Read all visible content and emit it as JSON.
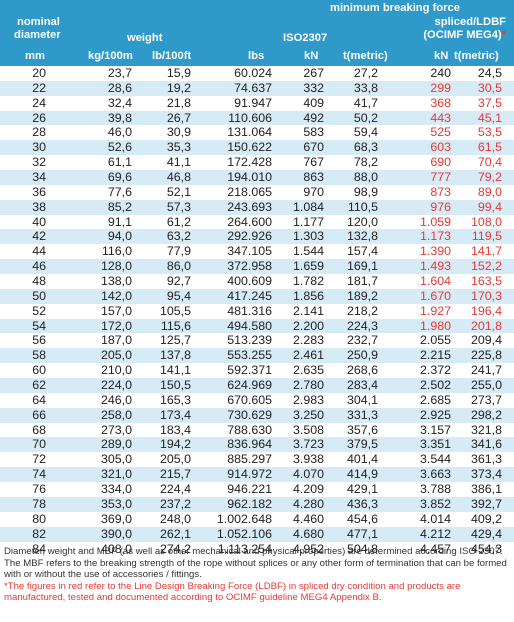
{
  "header": {
    "mbf_title": "minimum breaking force",
    "spliced_title": "spliced/LDBF",
    "ocimf_title": "(OCIMF MEG4)",
    "ocimf_star": "*",
    "nominal": "nominal",
    "diameter": "diameter",
    "weight": "weight",
    "iso": "ISO2307",
    "col_mm": "mm",
    "col_kg": "kg/100m",
    "col_lb": "lb/100ft",
    "col_lbs": "lbs",
    "col_kn": "kN",
    "col_tm": "t(metric)",
    "col_kn2": "kN",
    "col_tm2": "t(metric)"
  },
  "colors": {
    "header_bg": "#2f9ac9",
    "stripe": "#d6ebf6",
    "red": "#e53935"
  },
  "rows": [
    {
      "mm": "20",
      "kg": "23,7",
      "lb": "15,9",
      "lbs": "60.024",
      "kn": "267",
      "t": "27,2",
      "kn2": "240",
      "t2": "24,5",
      "red": false
    },
    {
      "mm": "22",
      "kg": "28,6",
      "lb": "19,2",
      "lbs": "74.637",
      "kn": "332",
      "t": "33,8",
      "kn2": "299",
      "t2": "30,5",
      "red": true
    },
    {
      "mm": "24",
      "kg": "32,4",
      "lb": "21,8",
      "lbs": "91.947",
      "kn": "409",
      "t": "41,7",
      "kn2": "368",
      "t2": "37,5",
      "red": true
    },
    {
      "mm": "26",
      "kg": "39,8",
      "lb": "26,7",
      "lbs": "110.606",
      "kn": "492",
      "t": "50,2",
      "kn2": "443",
      "t2": "45,1",
      "red": true
    },
    {
      "mm": "28",
      "kg": "46,0",
      "lb": "30,9",
      "lbs": "131.064",
      "kn": "583",
      "t": "59,4",
      "kn2": "525",
      "t2": "53,5",
      "red": true
    },
    {
      "mm": "30",
      "kg": "52,6",
      "lb": "35,3",
      "lbs": "150.622",
      "kn": "670",
      "t": "68,3",
      "kn2": "603",
      "t2": "61,5",
      "red": true
    },
    {
      "mm": "32",
      "kg": "61,1",
      "lb": "41,1",
      "lbs": "172.428",
      "kn": "767",
      "t": "78,2",
      "kn2": "690",
      "t2": "70,4",
      "red": true
    },
    {
      "mm": "34",
      "kg": "69,6",
      "lb": "46,8",
      "lbs": "194.010",
      "kn": "863",
      "t": "88,0",
      "kn2": "777",
      "t2": "79,2",
      "red": true
    },
    {
      "mm": "36",
      "kg": "77,6",
      "lb": "52,1",
      "lbs": "218.065",
      "kn": "970",
      "t": "98,9",
      "kn2": "873",
      "t2": "89,0",
      "red": true
    },
    {
      "mm": "38",
      "kg": "85,2",
      "lb": "57,3",
      "lbs": "243.693",
      "kn": "1.084",
      "t": "110,5",
      "kn2": "976",
      "t2": "99,4",
      "red": true
    },
    {
      "mm": "40",
      "kg": "91,1",
      "lb": "61,2",
      "lbs": "264.600",
      "kn": "1.177",
      "t": "120,0",
      "kn2": "1.059",
      "t2": "108,0",
      "red": true
    },
    {
      "mm": "42",
      "kg": "94,0",
      "lb": "63,2",
      "lbs": "292.926",
      "kn": "1.303",
      "t": "132,8",
      "kn2": "1.173",
      "t2": "119,5",
      "red": true
    },
    {
      "mm": "44",
      "kg": "116,0",
      "lb": "77,9",
      "lbs": "347.105",
      "kn": "1.544",
      "t": "157,4",
      "kn2": "1.390",
      "t2": "141,7",
      "red": true
    },
    {
      "mm": "46",
      "kg": "128,0",
      "lb": "86,0",
      "lbs": "372.958",
      "kn": "1.659",
      "t": "169,1",
      "kn2": "1.493",
      "t2": "152,2",
      "red": true
    },
    {
      "mm": "48",
      "kg": "138,0",
      "lb": "92,7",
      "lbs": "400.609",
      "kn": "1.782",
      "t": "181,7",
      "kn2": "1.604",
      "t2": "163,5",
      "red": true
    },
    {
      "mm": "50",
      "kg": "142,0",
      "lb": "95,4",
      "lbs": "417.245",
      "kn": "1.856",
      "t": "189,2",
      "kn2": "1.670",
      "t2": "170,3",
      "red": true
    },
    {
      "mm": "52",
      "kg": "157,0",
      "lb": "105,5",
      "lbs": "481.316",
      "kn": "2.141",
      "t": "218,2",
      "kn2": "1.927",
      "t2": "196,4",
      "red": true
    },
    {
      "mm": "54",
      "kg": "172,0",
      "lb": "115,6",
      "lbs": "494.580",
      "kn": "2.200",
      "t": "224,3",
      "kn2": "1.980",
      "t2": "201,8",
      "red": true
    },
    {
      "mm": "56",
      "kg": "187,0",
      "lb": "125,7",
      "lbs": "513.239",
      "kn": "2.283",
      "t": "232,7",
      "kn2": "2.055",
      "t2": "209,4",
      "red": false
    },
    {
      "mm": "58",
      "kg": "205,0",
      "lb": "137,8",
      "lbs": "553.255",
      "kn": "2.461",
      "t": "250,9",
      "kn2": "2.215",
      "t2": "225,8",
      "red": false
    },
    {
      "mm": "60",
      "kg": "210,0",
      "lb": "141,1",
      "lbs": "592.371",
      "kn": "2.635",
      "t": "268,6",
      "kn2": "2.372",
      "t2": "241,7",
      "red": false
    },
    {
      "mm": "62",
      "kg": "224,0",
      "lb": "150,5",
      "lbs": "624.969",
      "kn": "2.780",
      "t": "283,4",
      "kn2": "2.502",
      "t2": "255,0",
      "red": false
    },
    {
      "mm": "64",
      "kg": "246,0",
      "lb": "165,3",
      "lbs": "670.605",
      "kn": "2.983",
      "t": "304,1",
      "kn2": "2.685",
      "t2": "273,7",
      "red": false
    },
    {
      "mm": "66",
      "kg": "258,0",
      "lb": "173,4",
      "lbs": "730.629",
      "kn": "3.250",
      "t": "331,3",
      "kn2": "2.925",
      "t2": "298,2",
      "red": false
    },
    {
      "mm": "68",
      "kg": "273,0",
      "lb": "183,4",
      "lbs": "788.630",
      "kn": "3.508",
      "t": "357,6",
      "kn2": "3.157",
      "t2": "321,8",
      "red": false
    },
    {
      "mm": "70",
      "kg": "289,0",
      "lb": "194,2",
      "lbs": "836.964",
      "kn": "3.723",
      "t": "379,5",
      "kn2": "3.351",
      "t2": "341,6",
      "red": false
    },
    {
      "mm": "72",
      "kg": "305,0",
      "lb": "205,0",
      "lbs": "885.297",
      "kn": "3.938",
      "t": "401,4",
      "kn2": "3.544",
      "t2": "361,3",
      "red": false
    },
    {
      "mm": "74",
      "kg": "321,0",
      "lb": "215,7",
      "lbs": "914.972",
      "kn": "4.070",
      "t": "414,9",
      "kn2": "3.663",
      "t2": "373,4",
      "red": false
    },
    {
      "mm": "76",
      "kg": "334,0",
      "lb": "224,4",
      "lbs": "946.221",
      "kn": "4.209",
      "t": "429,1",
      "kn2": "3.788",
      "t2": "386,1",
      "red": false
    },
    {
      "mm": "78",
      "kg": "353,0",
      "lb": "237,2",
      "lbs": "962.182",
      "kn": "4.280",
      "t": "436,3",
      "kn2": "3.852",
      "t2": "392,7",
      "red": false
    },
    {
      "mm": "80",
      "kg": "369,0",
      "lb": "248,0",
      "lbs": "1.002.648",
      "kn": "4.460",
      "t": "454,6",
      "kn2": "4.014",
      "t2": "409,2",
      "red": false
    },
    {
      "mm": "82",
      "kg": "390,0",
      "lb": "262,1",
      "lbs": "1.052.106",
      "kn": "4.680",
      "t": "477,1",
      "kn2": "4.212",
      "t2": "429,4",
      "red": false
    },
    {
      "mm": "84",
      "kg": "408,0",
      "lb": "274,2",
      "lbs": "1.113.254",
      "kn": "4.952",
      "t": "504,8",
      "kn2": "4.457",
      "t2": "454,3",
      "red": false
    }
  ],
  "footer": {
    "note": "Diameter, weight and MBF (as well as other mechanical and physical properties) are determined according ISO 2307. The MBF refers to the breaking strength of the rope without splices or any other form of termination that can be formed with or without the use of accessories / fittings.",
    "red_note": "*The figures in red refer to the Line Design Breaking Force (LDBF) in spliced dry condition and products are manufactured, tested and documented according to OCIMF guideline MEG4 Appendix B."
  }
}
